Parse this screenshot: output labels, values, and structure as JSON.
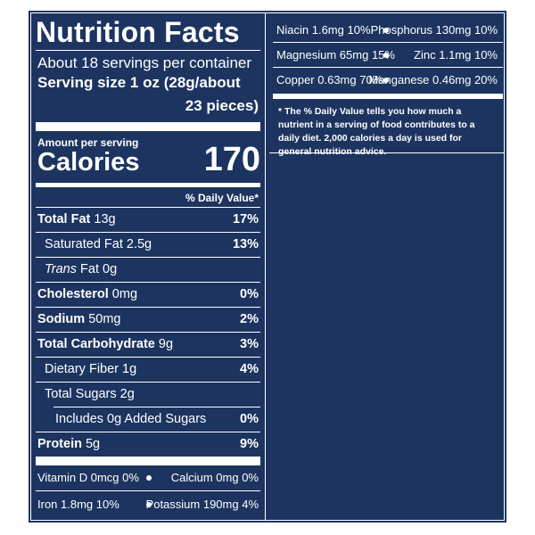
{
  "title": "Nutrition Facts",
  "servings_per_container": "About 18 servings per container",
  "serving_size": {
    "label_line1": "Serving size 1 oz (28g/about",
    "label_line2": "23 pieces)"
  },
  "amount_per_serving": "Amount per serving",
  "calories": {
    "label": "Calories",
    "value": "170"
  },
  "daily_value_header": "% Daily Value*",
  "nutrients": {
    "total_fat": {
      "name": "Total Fat",
      "amount": "13g",
      "dv": "17%"
    },
    "saturated_fat": {
      "name": "Saturated Fat 2.5g",
      "dv": "13%"
    },
    "trans_fat": {
      "name_italic": "Trans",
      "name_rest": "Fat 0g"
    },
    "cholesterol": {
      "name": "Cholesterol",
      "amount": "0mg",
      "dv": "0%"
    },
    "sodium": {
      "name": "Sodium",
      "amount": "50mg",
      "dv": "2%"
    },
    "total_carbohydrate": {
      "name": "Total Carbohydrate",
      "amount": "9g",
      "dv": "3%"
    },
    "dietary_fiber": {
      "name": "Dietary Fiber 1g",
      "dv": "4%"
    },
    "total_sugars": {
      "name": "Total Sugars 2g"
    },
    "added_sugars": {
      "name": "Includes 0g Added Sugars",
      "dv": "0%"
    },
    "protein": {
      "name": "Protein",
      "amount": "5g",
      "dv": "9%"
    }
  },
  "vitamins_left": [
    {
      "a": "Vitamin D 0mcg 0%",
      "b": "Calcium 0mg 0%"
    },
    {
      "a": "Iron 1.8mg 10%",
      "b": "Potassium 190mg 4%"
    }
  ],
  "vitamins_right": [
    {
      "a": "Niacin 1.6mg 10%",
      "b": "Phosphorus 130mg 10%"
    },
    {
      "a": "Magnesium 65mg 15%",
      "b": "Zinc 1.1mg 10%"
    },
    {
      "a": "Copper 0.63mg 70%",
      "b": "Manganese 0.46mg 20%"
    }
  ],
  "footnote": "* The % Daily Value tells you how much a nutrient in a serving of food contributes to a daily diet. 2,000 calories a day is used for general nutrition advice.",
  "colors": {
    "background": "#1d3460",
    "text": "#ffffff"
  }
}
